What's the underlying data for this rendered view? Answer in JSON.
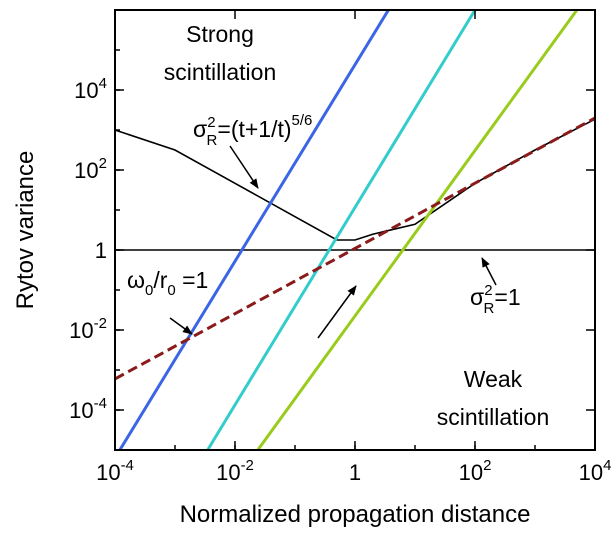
{
  "chart_data": {
    "type": "line",
    "xlabel": "Normalized propagation distance",
    "ylabel": "Rytov variance",
    "x_scale": "log",
    "y_scale": "log",
    "xlim": [
      0.0001,
      10000
    ],
    "ylim": [
      1e-05,
      1000000
    ],
    "grid": false,
    "x_ticks": [
      {
        "value": 0.0001,
        "base": "10",
        "exp": "-4"
      },
      {
        "value": 0.01,
        "base": "10",
        "exp": "-2"
      },
      {
        "value": 1,
        "base": "1",
        "exp": ""
      },
      {
        "value": 100,
        "base": "10",
        "exp": "2"
      },
      {
        "value": 10000,
        "base": "10",
        "exp": "4"
      }
    ],
    "y_ticks": [
      {
        "value": 0.0001,
        "base": "10",
        "exp": "-4"
      },
      {
        "value": 0.01,
        "base": "10",
        "exp": "-2"
      },
      {
        "value": 1,
        "base": "1",
        "exp": ""
      },
      {
        "value": 100,
        "base": "10",
        "exp": "2"
      },
      {
        "value": 10000,
        "base": "10",
        "exp": "4"
      }
    ],
    "series": [
      {
        "style": "solid",
        "color": "#000000",
        "x": [
          0.0001,
          0.001,
          0.01,
          0.1,
          0.5,
          1,
          2,
          10,
          100,
          1000,
          10000
        ],
        "y": [
          1000,
          316,
          46.4,
          6.81,
          1.79,
          1.78,
          2.5,
          4.4,
          46.4,
          316,
          1860
        ]
      },
      {
        "style": "solid",
        "color": "#000000",
        "x": [
          0.0001,
          10000
        ],
        "y": [
          1,
          1
        ]
      },
      {
        "style": "solid",
        "color": "#3a66e6",
        "x": [
          0.00012,
          3.6
        ],
        "y": [
          1e-05,
          1000000
        ]
      },
      {
        "style": "solid",
        "color": "#33cccc",
        "x": [
          0.0035,
          100
        ],
        "y": [
          1e-05,
          1000000
        ]
      },
      {
        "style": "solid",
        "color": "#99cc1a",
        "x": [
          0.024,
          5000
        ],
        "y": [
          1e-05,
          1000000
        ]
      },
      {
        "style": "dashed",
        "color": "#8b1a1a",
        "x": [
          0.0001,
          10000
        ],
        "y": [
          0.0006,
          2000
        ]
      }
    ],
    "annotations": {
      "strong": {
        "line1": "Strong",
        "line2": "scintillation"
      },
      "weak": {
        "line1": "Weak",
        "line2": "scintillation"
      },
      "rytov_formula": {
        "sigma": "σ",
        "sub": "R",
        "sup": "2",
        "eq": "=(t+1/t)",
        "sup2": "5/6"
      },
      "rytov_one": {
        "sigma": "σ",
        "sub": "R",
        "sup": "2",
        "eq": "=1"
      },
      "ratio": {
        "omega": "ω",
        "sub1": "0",
        "slash": "/r",
        "sub2": "0",
        "eq": " =1"
      }
    }
  }
}
